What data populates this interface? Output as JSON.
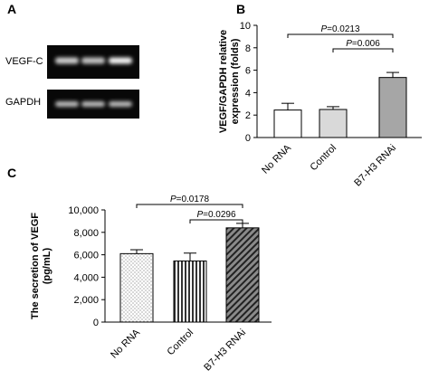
{
  "panels": {
    "a": {
      "letter": "A",
      "lane_labels": [
        "VEGF-C",
        "GAPDH"
      ],
      "band_intensity": {
        "VEGF-C": [
          0.72,
          0.66,
          0.95
        ],
        "GAPDH": [
          0.62,
          0.62,
          0.62
        ]
      }
    },
    "b": {
      "letter": "B"
    },
    "c": {
      "letter": "C"
    }
  },
  "chart_data": [
    {
      "type": "bar",
      "panel": "B",
      "categories": [
        "No RNA",
        "Control",
        "B7-H3 RNAi"
      ],
      "values": [
        2.45,
        2.5,
        5.35
      ],
      "errors": [
        0.6,
        0.25,
        0.45
      ],
      "ylabel": "VEGF/GAPDH relative expression (folds)",
      "ylim": [
        0,
        10
      ],
      "yticks": [
        "0",
        "2",
        "4",
        "6",
        "8",
        "10"
      ],
      "fills": [
        "#ffffff",
        "#d9d9d9",
        "#a6a6a6"
      ],
      "significance": [
        {
          "from": 0,
          "to": 2,
          "label": "P=0.0213"
        },
        {
          "from": 1,
          "to": 2,
          "label": "P=0.006"
        }
      ]
    },
    {
      "type": "bar",
      "panel": "C",
      "categories": [
        "No RNA",
        "Control",
        "B7-H3 RNAi"
      ],
      "values": [
        6100,
        5450,
        8400
      ],
      "errors": [
        350,
        700,
        400
      ],
      "ylabel": "The secretion of VEGF (pg/mL)",
      "ylim": [
        0,
        10000
      ],
      "yticks": [
        "0",
        "2,000",
        "4,000",
        "6,000",
        "8,000",
        "10,000"
      ],
      "patterns": [
        "dots",
        "vertical-stripes",
        "diagonal-hatch"
      ],
      "significance": [
        {
          "from": 0,
          "to": 2,
          "label": "P=0.0178"
        },
        {
          "from": 1,
          "to": 2,
          "label": "P=0.0296"
        }
      ]
    }
  ]
}
